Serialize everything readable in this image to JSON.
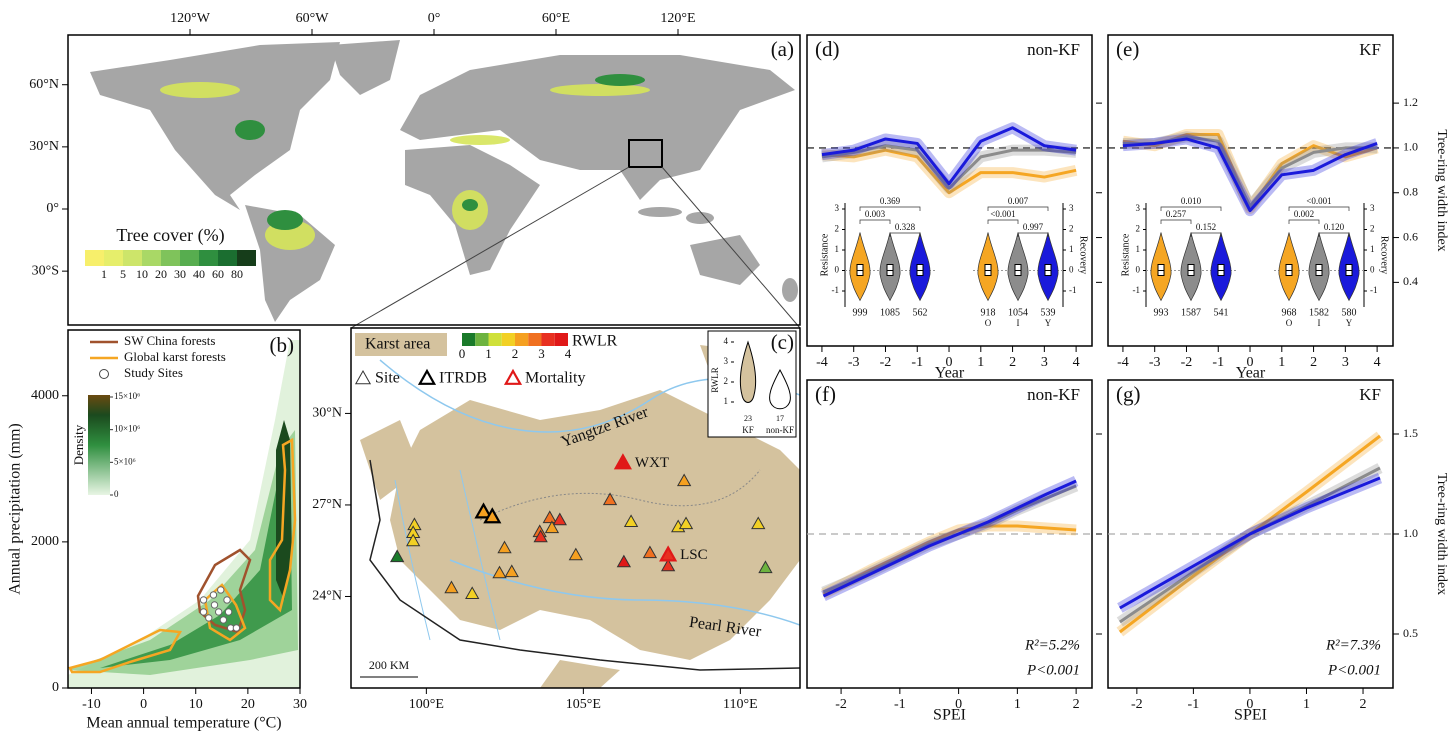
{
  "chart_data": [
    {
      "type": "map",
      "panel": "(a)",
      "xlim": [
        -180,
        180
      ],
      "ylim": [
        -56,
        84
      ],
      "xticks": [
        {
          "value": -120,
          "label": "120°W"
        },
        {
          "value": -60,
          "label": "60°W"
        },
        {
          "value": 0,
          "label": "0°"
        },
        {
          "value": 60,
          "label": "60°E"
        },
        {
          "value": 120,
          "label": "120°E"
        }
      ],
      "yticks": [
        {
          "value": 60,
          "label": "60°N"
        },
        {
          "value": 30,
          "label": "30°N"
        },
        {
          "value": 0,
          "label": "0°"
        },
        {
          "value": -30,
          "label": "30°S"
        }
      ],
      "legend_title": "Tree cover (%)",
      "legend_ticks": [
        1,
        5,
        10,
        20,
        30,
        40,
        60,
        80
      ],
      "legend_colors": [
        "#f7ef6b",
        "#e6ee6b",
        "#cde56a",
        "#a9d866",
        "#7fc35b",
        "#57ad4f",
        "#2f8f3f",
        "#1b6e30",
        "#163d1a"
      ]
    },
    {
      "type": "density",
      "panel": "(b)",
      "xlabel": "Mean annual temperature (°C)",
      "ylabel": "Annual precipitation (mm)",
      "xlim": [
        -14.5,
        30
      ],
      "ylim": [
        0,
        4900
      ],
      "xticks": [
        -10,
        0,
        10,
        20,
        30
      ],
      "yticks": [
        0,
        2000,
        4000
      ],
      "legend": [
        {
          "name": "SW China forests",
          "color": "#a0522d"
        },
        {
          "name": "Global karst forests",
          "color": "#f5a623"
        }
      ],
      "series": [
        {
          "name": "Study Sites",
          "color": "#ffffff",
          "x": [
            11.5,
            13.4,
            14.4,
            15.3,
            16.7,
            17.8,
            12.5,
            14.8,
            16.0,
            13.6,
            16.3,
            11.5
          ],
          "values": [
            1205,
            1274,
            1041,
            932,
            822,
            822,
            959,
            1342,
            1205,
            1137,
            1041,
            1041
          ]
        }
      ],
      "colorbar_title": "Density",
      "colorbar_ticks": [
        0,
        {
          "value": 5000000,
          "label": "5×10⁶"
        },
        {
          "value": 10000000,
          "label": "10×10⁶"
        },
        {
          "value": 15000000,
          "label": "15×10⁶"
        }
      ]
    },
    {
      "type": "map",
      "panel": "(c)",
      "xlim": [
        97.6,
        111.9
      ],
      "ylim": [
        21.0,
        32.8
      ],
      "xticks": [
        {
          "value": 100,
          "label": "100°E"
        },
        {
          "value": 105,
          "label": "105°E"
        },
        {
          "value": 110,
          "label": "110°E"
        }
      ],
      "yticks": [
        {
          "value": 30,
          "label": "30°N"
        },
        {
          "value": 27,
          "label": "27°N"
        },
        {
          "value": 24,
          "label": "24°N"
        }
      ],
      "area_label": "Karst area",
      "colorbar_title": "RWLR",
      "colorbar_ticks": [
        0,
        1,
        2,
        3,
        4
      ],
      "colorbar_colors": [
        "#1a7a2a",
        "#6db33f",
        "#cfe03a",
        "#f2d024",
        "#f5a020",
        "#f07020",
        "#e83020",
        "#e01818"
      ],
      "series": [
        {
          "name": "Site",
          "x": [
            99.62,
            99.58,
            99.58,
            99.07,
            100.8,
            101.46,
            102.49,
            102.33,
            102.72,
            103.61,
            103.93,
            104.25,
            104.0,
            103.64,
            104.76,
            105.85,
            106.52,
            106.29,
            107.12,
            107.7,
            108.21,
            108.02,
            108.27,
            110.57,
            110.8
          ],
          "y": [
            26.33,
            26.07,
            25.8,
            25.28,
            24.26,
            24.07,
            25.57,
            24.75,
            24.79,
            26.1,
            26.56,
            26.49,
            26.23,
            25.93,
            25.34,
            27.15,
            26.43,
            25.11,
            25.41,
            24.98,
            27.77,
            26.26,
            26.36,
            26.36,
            24.92
          ],
          "values": [
            1.5,
            1.5,
            1.5,
            0.3,
            2.0,
            1.5,
            2.0,
            2.2,
            2.0,
            2.5,
            2.7,
            3.0,
            2.3,
            3.0,
            2.3,
            2.8,
            1.8,
            3.8,
            2.7,
            3.2,
            2.2,
            1.5,
            1.8,
            1.8,
            0.5
          ]
        },
        {
          "name": "ITRDB",
          "color": "#000000",
          "x": [
            101.82,
            102.1
          ],
          "y": [
            26.75,
            26.59
          ],
          "values": [
            2.0,
            2.0
          ]
        },
        {
          "name": "Mortality",
          "color": "#e01818",
          "x": [
            106.26,
            107.7
          ],
          "y": [
            28.36,
            25.34
          ],
          "values": [
            3.6,
            3.4
          ]
        }
      ],
      "site_labels": [
        "WXT",
        "LSC"
      ],
      "rivers": [
        "Yangtze River",
        "Pearl River"
      ],
      "scale_bar": "200 KM",
      "inset": {
        "ylabel": "RWLR",
        "yticks": [
          1,
          2,
          3,
          4
        ],
        "categories": [
          "KF",
          "non-KF"
        ],
        "n": [
          23,
          17
        ],
        "colors": [
          "#d4c29e",
          "#ffffff"
        ]
      }
    },
    {
      "type": "line",
      "panel": "(d)",
      "title": "non-KF",
      "xlabel": "Year",
      "xlim": [
        -4.47,
        4.5
      ],
      "ylim": [
        0.116,
        1.504
      ],
      "hline": 1,
      "xticks": [
        -4,
        -3,
        -2,
        -1,
        0,
        1,
        2,
        3,
        4
      ],
      "x": [
        -4,
        -3,
        -2,
        -1,
        0,
        1,
        2,
        3,
        4
      ],
      "series": [
        {
          "color": "#f5a623",
          "values": [
            0.97,
            0.96,
            0.99,
            0.96,
            0.8,
            0.89,
            0.89,
            0.87,
            0.9
          ]
        },
        {
          "color": "#8c8c8c",
          "values": [
            0.96,
            0.98,
            1.01,
            0.99,
            0.82,
            0.96,
            0.99,
            0.99,
            0.98
          ]
        },
        {
          "color": "#1a1adb",
          "values": [
            0.97,
            0.99,
            1.04,
            1.02,
            0.84,
            1.03,
            1.09,
            1.01,
            0.99
          ]
        }
      ],
      "inset_yticks": [
        -1,
        0,
        1,
        2,
        3
      ],
      "groups": [
        "O",
        "I",
        "Y"
      ],
      "insets": [
        {
          "ylabel": "Resistance",
          "pvalues": [
            0.369,
            0.003,
            0.328
          ],
          "n": [
            999,
            1085,
            562
          ]
        },
        {
          "ylabel": "Recovery",
          "pvalues": [
            0.007,
            "<0.001",
            0.997
          ],
          "n": [
            918,
            1054,
            539
          ]
        }
      ]
    },
    {
      "type": "line",
      "panel": "(e)",
      "title": "KF",
      "xlabel": "Year",
      "ylabel": "Tree-ring width index",
      "xlim": [
        -4.47,
        4.5
      ],
      "ylim": [
        0.116,
        1.504
      ],
      "hline": 1,
      "xticks": [
        -4,
        -3,
        -2,
        -1,
        0,
        1,
        2,
        3,
        4
      ],
      "yticks": [
        0.4,
        0.6,
        0.8,
        {
          "value": 1,
          "label": "1.0"
        },
        1.2
      ],
      "x": [
        -4,
        -3,
        -2,
        -1,
        0,
        1,
        2,
        3,
        4
      ],
      "series": [
        {
          "color": "#f5a623",
          "values": [
            1.03,
            1.01,
            1.06,
            1.06,
            0.73,
            0.93,
            1.01,
            0.96,
            1.0
          ]
        },
        {
          "color": "#8c8c8c",
          "values": [
            1.02,
            1.02,
            1.05,
            1.03,
            0.74,
            0.91,
            0.98,
            1.0,
            1.0
          ]
        },
        {
          "color": "#1a1adb",
          "values": [
            1.01,
            1.02,
            1.04,
            1.0,
            0.72,
            0.88,
            0.9,
            0.97,
            1.02
          ]
        }
      ],
      "inset_yticks": [
        -1,
        0,
        1,
        2,
        3
      ],
      "groups": [
        "O",
        "I",
        "Y"
      ],
      "insets": [
        {
          "ylabel": "Resistance",
          "pvalues": [
            {
              "value": 0.01,
              "label": "0.010"
            },
            0.257,
            0.152
          ],
          "n": [
            993,
            1587,
            541
          ]
        },
        {
          "ylabel": "Recovery",
          "pvalues": [
            "<0.001",
            0.002,
            {
              "value": 0.12,
              "label": "0.120"
            }
          ],
          "n": [
            968,
            1582,
            580
          ]
        }
      ]
    },
    {
      "type": "line",
      "panel": "(f)",
      "title": "non-KF",
      "xlabel": "SPEI",
      "xlim": [
        -2.58,
        2.27
      ],
      "ylim": [
        0.23,
        1.77
      ],
      "hline": 1,
      "xticks": [
        -2,
        -1,
        0,
        1,
        2
      ],
      "x": [
        -2.3,
        -1.5,
        -0.5,
        0,
        0.5,
        1,
        1.5,
        2
      ],
      "series": [
        {
          "color": "#f5a623",
          "values": [
            0.7,
            0.82,
            0.96,
            1.02,
            1.04,
            1.04,
            1.03,
            1.02
          ]
        },
        {
          "color": "#8c8c8c",
          "values": [
            0.71,
            0.81,
            0.95,
            1.0,
            1.05,
            1.12,
            1.18,
            1.24
          ]
        },
        {
          "color": "#1a1adb",
          "values": [
            0.69,
            0.8,
            0.94,
            1.0,
            1.06,
            1.13,
            1.2,
            1.265
          ]
        }
      ],
      "annotations": [
        "R²=5.2%",
        "P<0.001"
      ]
    },
    {
      "type": "line",
      "panel": "(g)",
      "title": "KF",
      "xlabel": "SPEI",
      "ylabel": "Tree-ring width index",
      "xlim": [
        -2.51,
        2.53
      ],
      "ylim": [
        0.23,
        1.77
      ],
      "hline": 1,
      "xticks": [
        -2,
        -1,
        0,
        1,
        2
      ],
      "yticks": [
        0.5,
        {
          "value": 1,
          "label": "1.0"
        },
        1.5
      ],
      "x": [
        -2.3,
        -1,
        0,
        1,
        2.3
      ],
      "series": [
        {
          "color": "#f5a623",
          "values": [
            0.51,
            0.79,
            1.0,
            1.21,
            1.49
          ]
        },
        {
          "color": "#8c8c8c",
          "values": [
            0.56,
            0.81,
            1.0,
            1.14,
            1.33
          ]
        },
        {
          "color": "#1a1adb",
          "values": [
            0.63,
            0.84,
            1.0,
            1.13,
            1.28
          ]
        }
      ],
      "annotations": [
        "R²=7.3%",
        "P<0.001"
      ]
    }
  ]
}
